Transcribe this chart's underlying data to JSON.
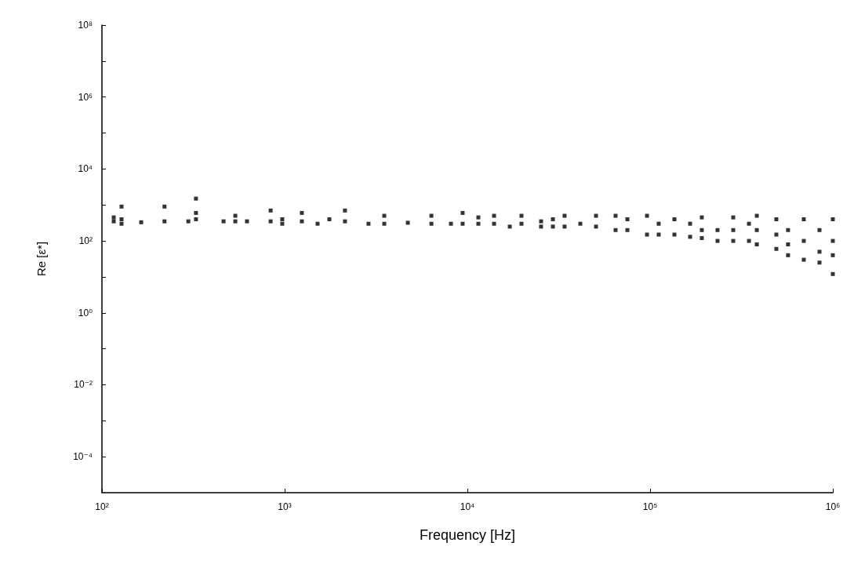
{
  "chart_data": {
    "type": "scatter",
    "xlabel": "Frequency [Hz]",
    "ylabel": "Re [ε*]",
    "log": "xy",
    "grid": false,
    "marker": "square",
    "xlim": [
      100,
      1000000
    ],
    "ylim": [
      1e-05,
      100000000
    ],
    "xticks": [
      {
        "value": 100,
        "label": "10²"
      },
      {
        "value": 1000,
        "label": "10³"
      },
      {
        "value": 10000,
        "label": "10⁴"
      },
      {
        "value": 100000,
        "label": "10⁵"
      },
      {
        "value": 1000000,
        "label": "10⁶"
      }
    ],
    "yticks": [
      {
        "value": 0.0001,
        "label": "10⁻⁴"
      },
      {
        "value": 0.001,
        "label": null
      },
      {
        "value": 0.01,
        "label": "10⁻²"
      },
      {
        "value": 0.1,
        "label": null
      },
      {
        "value": 1,
        "label": "10⁰"
      },
      {
        "value": 10,
        "label": null
      },
      {
        "value": 100,
        "label": "10²"
      },
      {
        "value": 1000,
        "label": null
      },
      {
        "value": 10000,
        "label": "10⁴"
      },
      {
        "value": 100000,
        "label": null
      },
      {
        "value": 1000000,
        "label": "10⁶"
      },
      {
        "value": 10000000,
        "label": null
      },
      {
        "value": 100000000,
        "label": "10⁸"
      }
    ],
    "series": [
      {
        "color": "#000000",
        "x": [
          116,
          116,
          128,
          128,
          128,
          164,
          220,
          220,
          297,
          327,
          327,
          327,
          463,
          537,
          537,
          622,
          838,
          838,
          970,
          970,
          1242,
          1242,
          1514,
          1756,
          2138,
          2138,
          2876,
          3508,
          3508,
          4721,
          6353,
          6353,
          8128,
          9419,
          9419,
          11482,
          11482,
          13996,
          13996,
          17061,
          19770,
          19770,
          25308,
          25308,
          29376,
          29376,
          34034,
          34034,
          41495,
          50582,
          50582,
          64713,
          64713,
          75109,
          75109,
          96161,
          96161,
          111430,
          111430,
          135830,
          135830,
          165580,
          165580,
          191870,
          191870,
          191870,
          233890,
          233890,
          285100,
          285100,
          285100,
          347540,
          347540,
          383710,
          383710,
          383710,
          490780,
          490780,
          490780,
          568860,
          568860,
          568860,
          693430,
          693430,
          693430,
          845300,
          845300,
          845300,
          1000000,
          1000000,
          1000000,
          1000000
        ],
        "values": [
          350,
          450,
          900,
          400,
          300,
          330,
          900,
          350,
          350,
          1500,
          600,
          400,
          350,
          500,
          350,
          350,
          700,
          350,
          400,
          300,
          600,
          350,
          300,
          400,
          700,
          350,
          300,
          500,
          300,
          320,
          500,
          300,
          300,
          600,
          300,
          450,
          300,
          500,
          300,
          250,
          500,
          300,
          350,
          250,
          400,
          250,
          500,
          250,
          300,
          500,
          250,
          500,
          200,
          400,
          200,
          500,
          150,
          300,
          150,
          400,
          150,
          300,
          130,
          450,
          200,
          120,
          200,
          100,
          450,
          200,
          100,
          300,
          100,
          500,
          200,
          80,
          400,
          150,
          60,
          200,
          80,
          40,
          400,
          100,
          30,
          200,
          50,
          25,
          400,
          100,
          40,
          12
        ]
      }
    ]
  }
}
